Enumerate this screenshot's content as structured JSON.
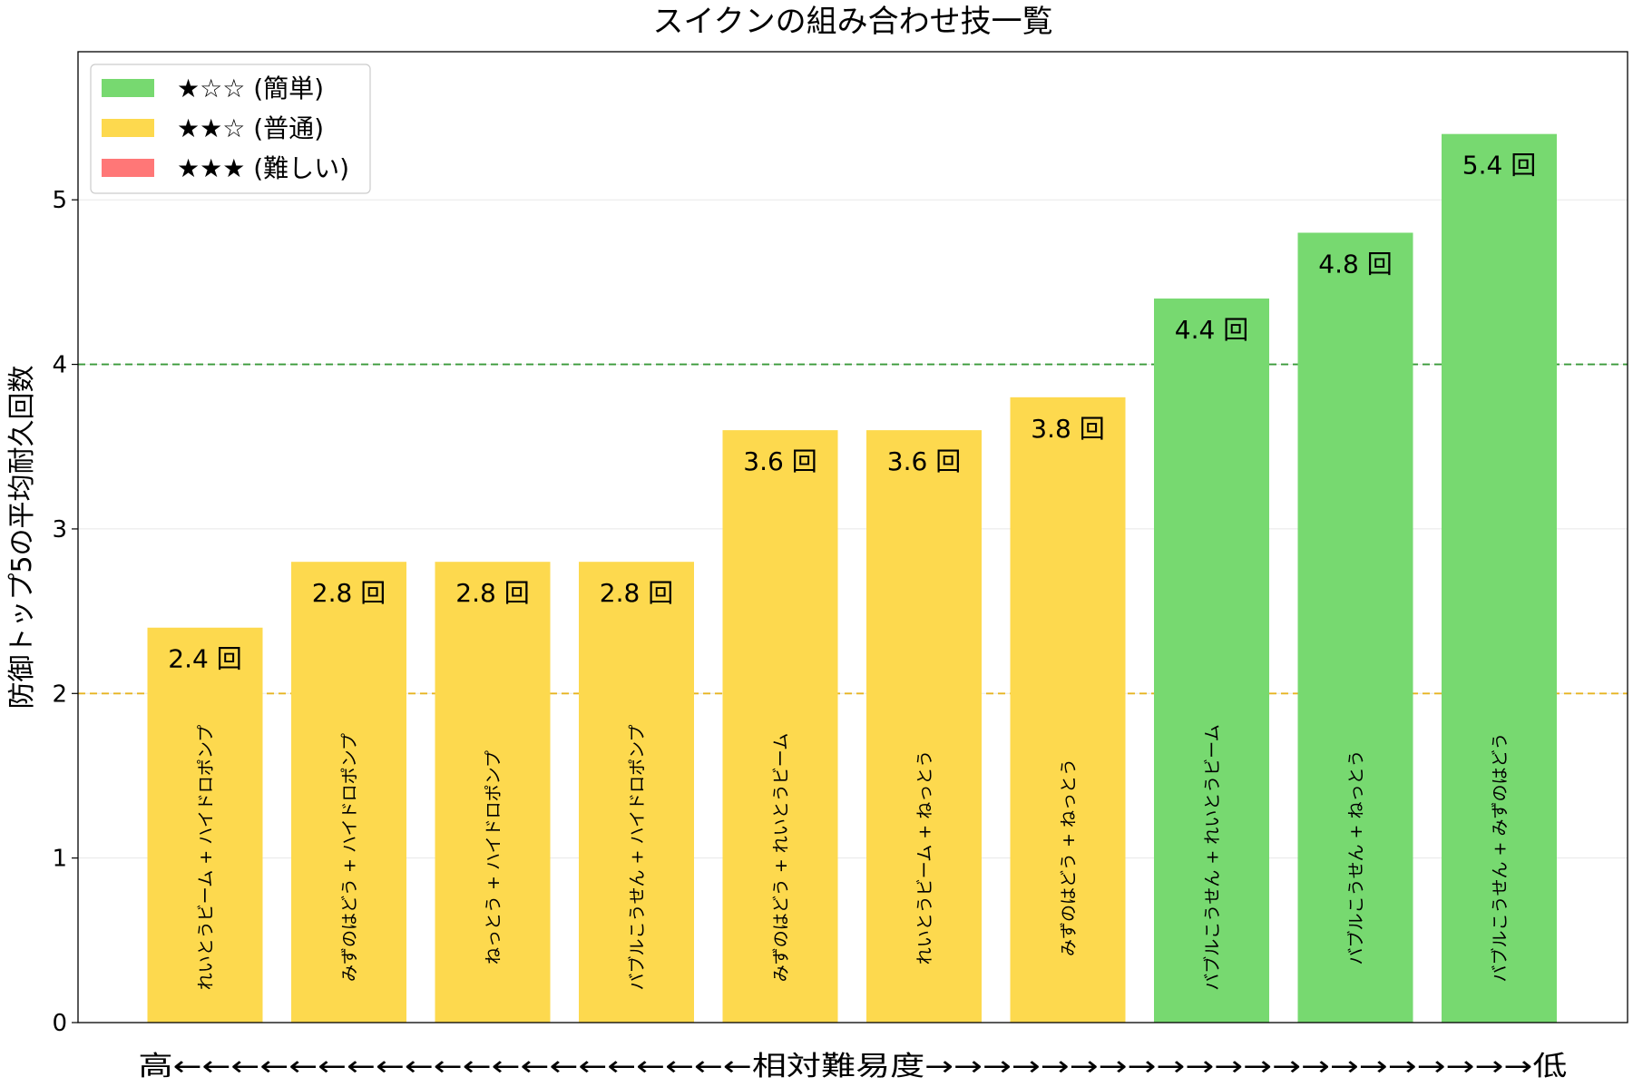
{
  "chart_data": {
    "type": "bar",
    "title": "スイクンの組み合わせ技一覧",
    "xlabel": "高←←←←←←←←←←←←←←←←←←←←相対難易度→→→→→→→→→→→→→→→→→→→→→低",
    "ylabel": "防御トップ5の平均耐久回数",
    "ylim": [
      0,
      5.9
    ],
    "yticks": [
      0,
      1,
      2,
      3,
      4,
      5
    ],
    "grid": "horizontal",
    "legend_position": "top-left",
    "categories": [
      "れいとうビーム + ハイドロポンプ",
      "みずのはどう + ハイドロポンプ",
      "ねっとう + ハイドロポンプ",
      "バブルこうせん + ハイドロポンプ",
      "みずのはどう + れいとうビーム",
      "れいとうビーム + ねっとう",
      "みずのはどう + ねっとう",
      "バブルこうせん + れいとうビーム",
      "バブルこうせん + ねっとう",
      "バブルこうせん + みずのはどう"
    ],
    "values": [
      2.4,
      2.8,
      2.8,
      2.8,
      3.6,
      3.6,
      3.8,
      4.4,
      4.8,
      5.4
    ],
    "value_labels": [
      "2.4 回",
      "2.8 回",
      "2.8 回",
      "2.8 回",
      "3.6 回",
      "3.6 回",
      "3.8 回",
      "4.4 回",
      "4.8 回",
      "5.4 回"
    ],
    "difficulty": [
      "normal",
      "normal",
      "normal",
      "normal",
      "normal",
      "normal",
      "normal",
      "easy",
      "easy",
      "easy"
    ],
    "reference_lines": [
      {
        "value": 4,
        "color": "#3a9a3a"
      },
      {
        "value": 2,
        "color": "#e6b422"
      }
    ],
    "legend": [
      {
        "key": "easy",
        "label": "★☆☆ (簡単)",
        "color": "#77d970"
      },
      {
        "key": "normal",
        "label": "★★☆ (普通)",
        "color": "#fdd94e"
      },
      {
        "key": "hard",
        "label": "★★★ (難しい)",
        "color": "#ff7777"
      }
    ]
  }
}
